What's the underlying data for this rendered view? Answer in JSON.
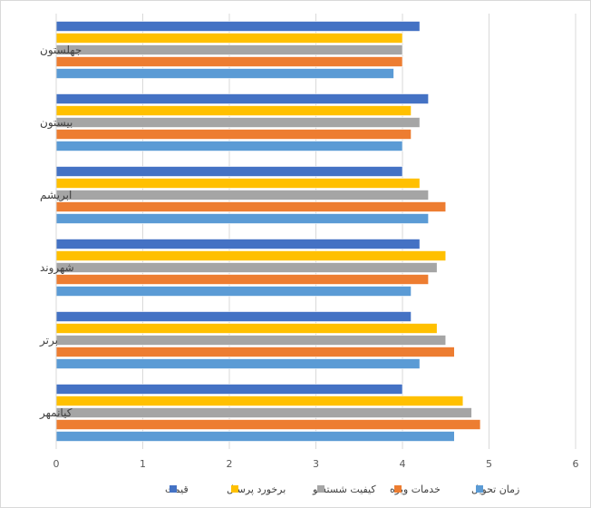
{
  "chart_data": {
    "type": "bar",
    "orientation": "horizontal",
    "categories": [
      "جهلستون",
      "بیستون",
      "ابریشم",
      "شهروند",
      "برتر",
      "کیانمهر"
    ],
    "series": [
      {
        "name": "قیمت",
        "color": "#4472C4",
        "values": [
          4.2,
          4.3,
          4.0,
          4.2,
          4.1,
          4.0
        ]
      },
      {
        "name": "برخورد پرسنل",
        "color": "#FFC000",
        "values": [
          4.0,
          4.1,
          4.2,
          4.5,
          4.4,
          4.7
        ]
      },
      {
        "name": "کیفیت شستشو",
        "color": "#A5A5A5",
        "values": [
          4.0,
          4.2,
          4.3,
          4.4,
          4.5,
          4.8
        ]
      },
      {
        "name": "خدمات ویژه",
        "color": "#ED7D31",
        "values": [
          4.0,
          4.1,
          4.5,
          4.3,
          4.6,
          4.9
        ]
      },
      {
        "name": "زمان تحویل",
        "color": "#5B9BD5",
        "values": [
          3.9,
          4.0,
          4.3,
          4.1,
          4.2,
          4.6
        ]
      }
    ],
    "xlim": [
      0,
      6
    ],
    "xticks": [
      "0",
      "1",
      "2",
      "3",
      "4",
      "5",
      "6"
    ],
    "grid": true,
    "legend_position": "bottom",
    "title": "",
    "xlabel": "",
    "ylabel": ""
  }
}
